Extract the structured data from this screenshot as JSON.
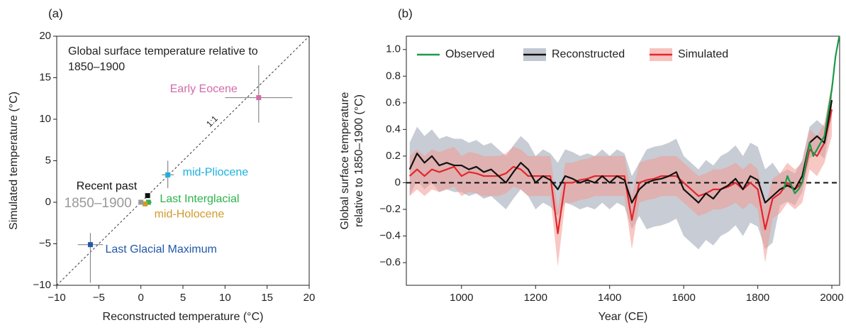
{
  "chart_data": [
    {
      "type": "scatter",
      "panel_label": "(a)",
      "annotation_lines": [
        "Global surface temperature relative to",
        "1850–1900"
      ],
      "identity_label": "1:1",
      "x_label": "Reconstructed temperature (°C)",
      "y_label": "Simulated temperature (°C)",
      "xlim": [
        -10,
        20
      ],
      "ylim": [
        -10,
        20
      ],
      "xticks": [
        {
          "value": -10,
          "label": "−10"
        },
        {
          "value": -5,
          "label": "−5"
        },
        0,
        5,
        10,
        15,
        20
      ],
      "yticks": [
        {
          "value": -10,
          "label": "−10"
        },
        {
          "value": -5,
          "label": "−5"
        },
        0,
        5,
        10,
        15,
        20
      ],
      "points": [
        {
          "label": "Early Eocene",
          "color": "#d36ba8",
          "x": 14,
          "y": 12.6,
          "xrange": [
            10,
            18
          ],
          "yrange": [
            9.6,
            16.5
          ]
        },
        {
          "label": "mid-Pliocene",
          "color": "#1ab0e0",
          "x": 3.2,
          "y": 3.3,
          "xrange": [
            2.5,
            3.9
          ],
          "yrange": [
            1.7,
            5.0
          ]
        },
        {
          "label": "Last Interglacial",
          "color": "#2db34a",
          "x": 0.9,
          "y": 0,
          "xrange": [
            0.5,
            1.3
          ],
          "yrange": [
            -0.3,
            0.3
          ]
        },
        {
          "label": "mid-Holocene",
          "color": "#d09a2c",
          "x": 0.5,
          "y": -0.2
        },
        {
          "label": "Recent past",
          "color": "#111111",
          "x": 0.8,
          "y": 0.8
        },
        {
          "label": "1850–1900",
          "color": "#999999",
          "x": 0,
          "y": 0
        },
        {
          "label": "Last Glacial Maximum",
          "color": "#2258a8",
          "x": -6,
          "y": -5.1,
          "xrange": [
            -7.5,
            -4.5
          ],
          "yrange": [
            -9.7,
            -3.7
          ]
        }
      ]
    },
    {
      "type": "line",
      "panel_label": "(b)",
      "x_label": "Year (CE)",
      "y_label_lines": [
        "Global surface temperature",
        "relative to 1850–1900 (°C)"
      ],
      "xlim": [
        851,
        2021
      ],
      "ylim": [
        -0.77,
        1.1
      ],
      "xticks": [
        1000,
        1200,
        1400,
        1600,
        1800,
        2000
      ],
      "yticks": [
        {
          "value": -0.6,
          "label": "−0.6"
        },
        {
          "value": -0.4,
          "label": "−0.4"
        },
        {
          "value": -0.2,
          "label": "−0.2"
        },
        0,
        0.2,
        0.4,
        0.6,
        0.8,
        {
          "value": 1.0,
          "label": "1.0"
        }
      ],
      "reference_line": 0,
      "x": [
        860,
        880,
        900,
        920,
        940,
        960,
        980,
        1000,
        1020,
        1040,
        1060,
        1080,
        1100,
        1120,
        1140,
        1160,
        1180,
        1200,
        1220,
        1240,
        1260,
        1280,
        1300,
        1320,
        1340,
        1360,
        1380,
        1400,
        1420,
        1440,
        1460,
        1480,
        1500,
        1520,
        1540,
        1560,
        1580,
        1600,
        1620,
        1640,
        1660,
        1680,
        1700,
        1720,
        1740,
        1760,
        1780,
        1800,
        1820,
        1840,
        1860,
        1880,
        1900,
        1920,
        1940,
        1960,
        1980,
        2000
      ],
      "series": [
        {
          "name": "Reconstructed",
          "color": "#111111",
          "band_color": "#9aa3b0",
          "values": [
            0.1,
            0.22,
            0.15,
            0.2,
            0.13,
            0.15,
            0.13,
            0.13,
            0.1,
            0.12,
            0.08,
            0.1,
            0.05,
            0.0,
            0.08,
            0.15,
            0.1,
            0.0,
            0.05,
            0.02,
            -0.05,
            0.05,
            0.03,
            0.0,
            0.02,
            0.0,
            0.05,
            0.0,
            0.05,
            0.02,
            -0.15,
            -0.05,
            0.0,
            0.02,
            0.03,
            0.05,
            0.08,
            -0.05,
            -0.1,
            -0.15,
            -0.08,
            -0.12,
            -0.05,
            -0.02,
            0.03,
            -0.05,
            0.05,
            0.02,
            -0.15,
            -0.1,
            -0.05,
            -0.02,
            -0.05,
            0.05,
            0.3,
            0.35,
            0.3,
            0.62
          ],
          "upper": [
            0.3,
            0.42,
            0.35,
            0.4,
            0.33,
            0.35,
            0.33,
            0.33,
            0.3,
            0.32,
            0.28,
            0.3,
            0.25,
            0.2,
            0.28,
            0.35,
            0.3,
            0.2,
            0.25,
            0.22,
            0.15,
            0.25,
            0.23,
            0.2,
            0.22,
            0.2,
            0.25,
            0.2,
            0.25,
            0.22,
            0.05,
            0.15,
            0.25,
            0.27,
            0.28,
            0.3,
            0.33,
            0.2,
            0.15,
            0.1,
            0.17,
            0.13,
            0.2,
            0.23,
            0.28,
            0.2,
            0.3,
            0.27,
            0.1,
            0.15,
            0.07,
            0.1,
            0.07,
            0.17,
            0.42,
            0.47,
            0.42,
            0.74
          ],
          "lower": [
            -0.1,
            0.02,
            -0.05,
            0.0,
            -0.07,
            -0.05,
            -0.07,
            -0.07,
            -0.1,
            -0.08,
            -0.12,
            -0.1,
            -0.15,
            -0.2,
            -0.12,
            -0.05,
            -0.1,
            -0.2,
            -0.15,
            -0.18,
            -0.25,
            -0.15,
            -0.17,
            -0.2,
            -0.18,
            -0.2,
            -0.15,
            -0.2,
            -0.15,
            -0.18,
            -0.35,
            -0.25,
            -0.35,
            -0.33,
            -0.32,
            -0.3,
            -0.27,
            -0.4,
            -0.45,
            -0.5,
            -0.43,
            -0.47,
            -0.4,
            -0.37,
            -0.32,
            -0.4,
            -0.3,
            -0.33,
            -0.5,
            -0.45,
            -0.17,
            -0.14,
            -0.17,
            -0.07,
            0.18,
            0.23,
            0.18,
            0.5
          ]
        },
        {
          "name": "Simulated",
          "color": "#e3262b",
          "band_color": "#f29a94",
          "values": [
            0.05,
            0.1,
            0.05,
            0.1,
            0.08,
            0.1,
            0.12,
            0.05,
            0.08,
            0.07,
            0.05,
            0.05,
            0.05,
            0.07,
            0.12,
            0.1,
            0.05,
            0.05,
            0.05,
            0.05,
            -0.38,
            0.0,
            0.0,
            0.02,
            0.03,
            0.05,
            0.05,
            0.05,
            0.05,
            0.05,
            -0.28,
            0.0,
            0.02,
            0.03,
            0.05,
            0.05,
            0.05,
            0.0,
            -0.05,
            -0.1,
            -0.08,
            -0.05,
            -0.05,
            -0.03,
            0.0,
            -0.05,
            0.0,
            -0.05,
            -0.35,
            -0.12,
            -0.08,
            0.0,
            -0.05,
            0.0,
            0.25,
            0.2,
            0.3,
            0.55
          ],
          "upper": [
            0.2,
            0.25,
            0.2,
            0.25,
            0.23,
            0.25,
            0.27,
            0.2,
            0.23,
            0.22,
            0.2,
            0.2,
            0.2,
            0.22,
            0.27,
            0.25,
            0.2,
            0.2,
            0.2,
            0.2,
            -0.2,
            0.15,
            0.15,
            0.17,
            0.18,
            0.2,
            0.2,
            0.2,
            0.2,
            0.2,
            -0.1,
            0.15,
            0.17,
            0.18,
            0.2,
            0.2,
            0.2,
            0.15,
            0.1,
            0.05,
            0.07,
            0.1,
            0.1,
            0.12,
            0.15,
            0.1,
            0.15,
            0.1,
            -0.18,
            0.03,
            0.07,
            0.15,
            0.1,
            0.15,
            0.4,
            0.35,
            0.45,
            0.75
          ],
          "lower": [
            -0.1,
            -0.05,
            -0.1,
            -0.05,
            -0.07,
            -0.05,
            -0.03,
            -0.1,
            -0.07,
            -0.08,
            -0.1,
            -0.1,
            -0.1,
            -0.08,
            -0.03,
            -0.05,
            -0.1,
            -0.1,
            -0.1,
            -0.1,
            -0.63,
            -0.15,
            -0.15,
            -0.13,
            -0.12,
            -0.1,
            -0.1,
            -0.1,
            -0.1,
            -0.1,
            -0.5,
            -0.15,
            -0.13,
            -0.12,
            -0.1,
            -0.1,
            -0.1,
            -0.15,
            -0.2,
            -0.25,
            -0.23,
            -0.2,
            -0.2,
            -0.18,
            -0.15,
            -0.2,
            -0.15,
            -0.2,
            -0.6,
            -0.27,
            -0.23,
            -0.15,
            -0.2,
            -0.15,
            0.1,
            0.05,
            0.15,
            0.35
          ]
        },
        {
          "name": "Observed",
          "color": "#1a9a48",
          "x": [
            1870,
            1880,
            1900,
            1910,
            1920,
            1940,
            1950,
            1960,
            1980,
            2000,
            2010,
            2020
          ],
          "values": [
            -0.05,
            0.05,
            -0.08,
            -0.05,
            0.0,
            0.3,
            0.2,
            0.25,
            0.35,
            0.7,
            0.95,
            1.1
          ]
        }
      ]
    }
  ]
}
